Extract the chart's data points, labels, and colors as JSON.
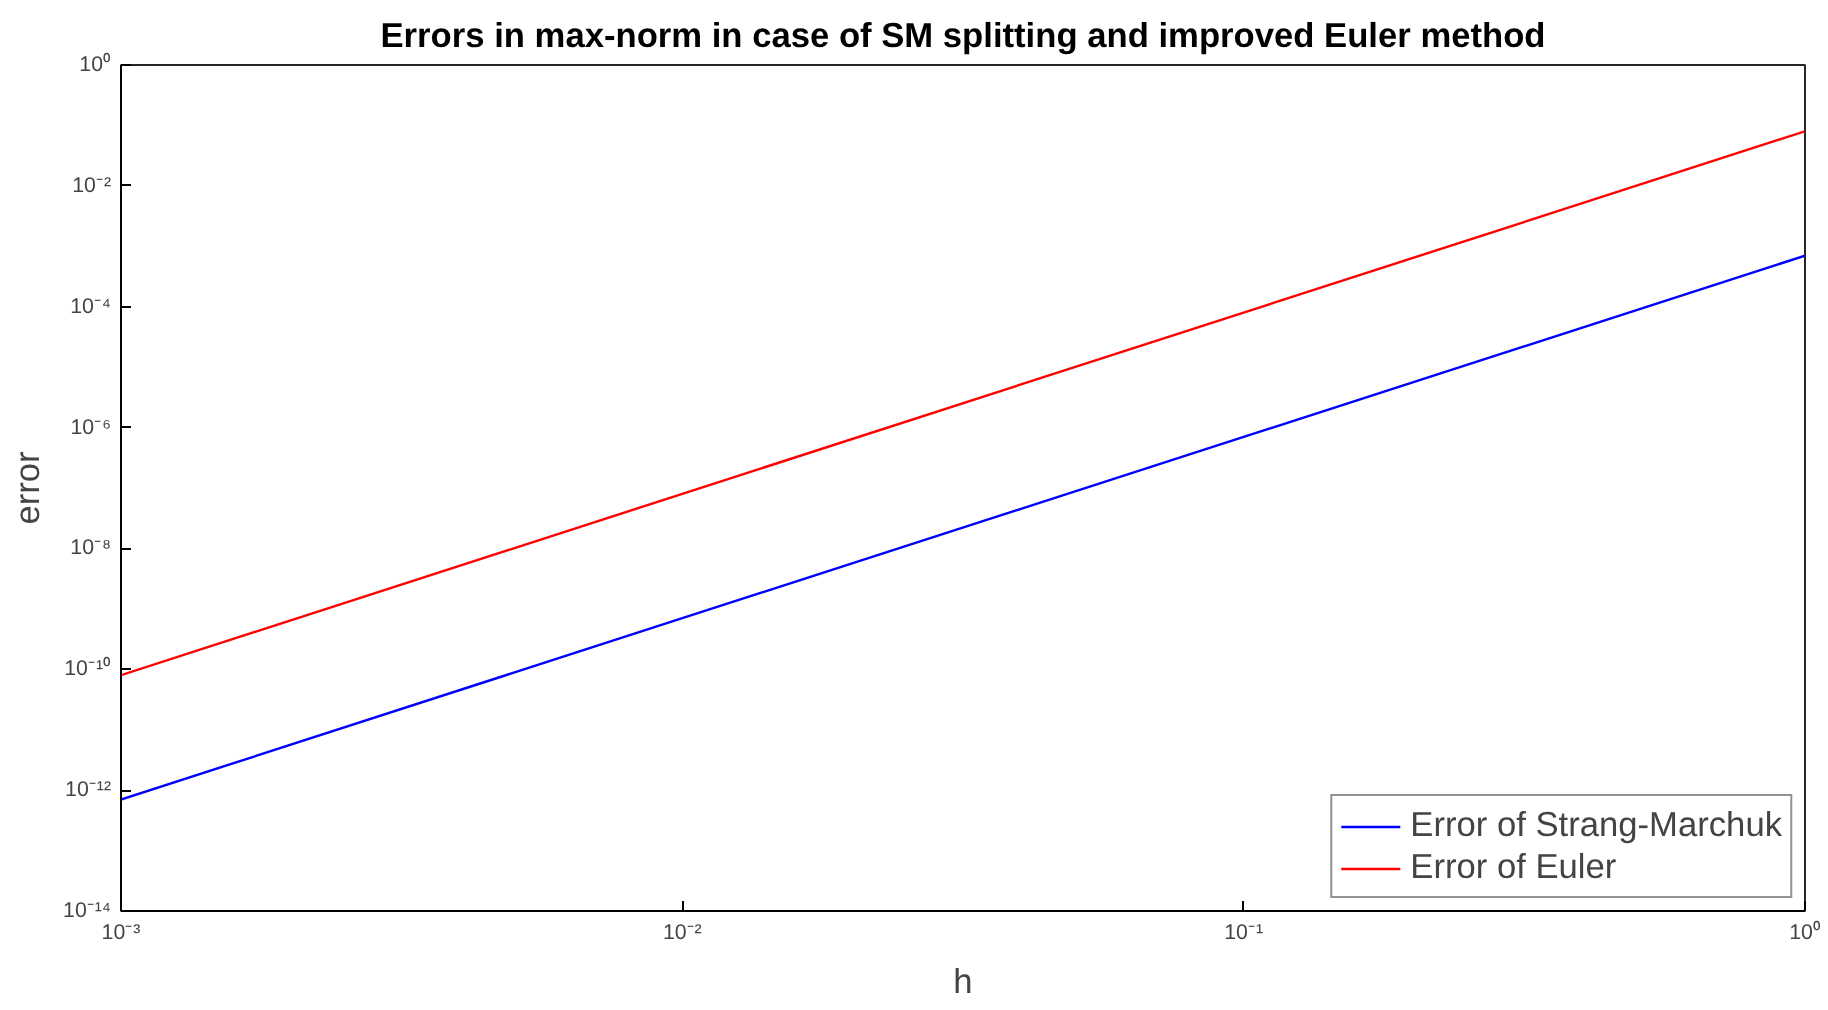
{
  "chart_data": {
    "type": "line",
    "title": "Errors in max-norm in case of SM splitting and improved Euler method",
    "xlabel": "h",
    "ylabel": "error",
    "x": [
      0.001,
      0.01,
      0.1,
      1
    ],
    "series": [
      {
        "name": "Error of Strang-Marchuk",
        "color": "#0000ff",
        "values": [
          7e-13,
          7e-10,
          7e-07,
          0.0007
        ]
      },
      {
        "name": "Error of Euler",
        "color": "#ff0000",
        "values": [
          8e-11,
          8e-08,
          8e-05,
          0.08
        ]
      }
    ],
    "log": "xy",
    "xlim": [
      0.001,
      1
    ],
    "ylim": [
      1e-14,
      1
    ],
    "xticks": [
      {
        "value": 0.001,
        "label": "10⁻³"
      },
      {
        "value": 0.01,
        "label": "10⁻²"
      },
      {
        "value": 0.1,
        "label": "10⁻¹"
      },
      {
        "value": 1,
        "label": "10⁰"
      }
    ],
    "yticks": [
      {
        "value": 1e-14,
        "label": "10⁻¹⁴"
      },
      {
        "value": 1e-12,
        "label": "10⁻¹²"
      },
      {
        "value": 1e-10,
        "label": "10⁻¹⁰"
      },
      {
        "value": 1e-08,
        "label": "10⁻⁸"
      },
      {
        "value": 1e-06,
        "label": "10⁻⁶"
      },
      {
        "value": 0.0001,
        "label": "10⁻⁴"
      },
      {
        "value": 0.01,
        "label": "10⁻²"
      },
      {
        "value": 1,
        "label": "10⁰"
      }
    ],
    "grid": false,
    "legend": "bottom right",
    "marker": "none",
    "line_style": "solid"
  }
}
